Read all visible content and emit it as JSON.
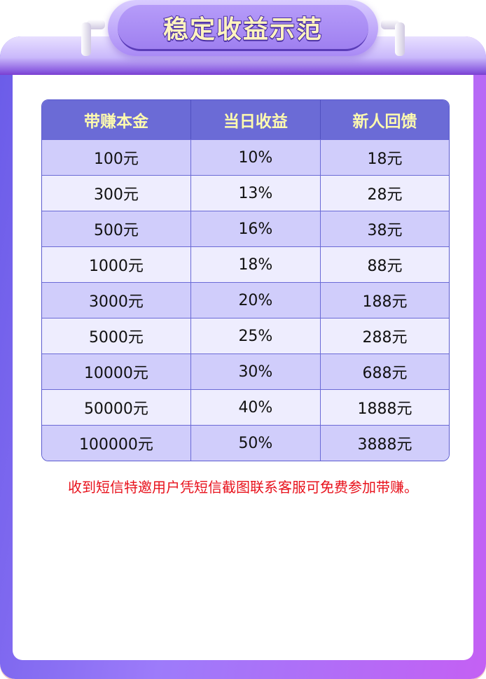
{
  "title": "稳定收益示范",
  "table": {
    "headers": [
      "带赚本金",
      "当日收益",
      "新人回馈"
    ],
    "rows": [
      [
        "100元",
        "10%",
        "18元"
      ],
      [
        "300元",
        "13%",
        "28元"
      ],
      [
        "500元",
        "16%",
        "38元"
      ],
      [
        "1000元",
        "18%",
        "88元"
      ],
      [
        "3000元",
        "20%",
        "188元"
      ],
      [
        "5000元",
        "25%",
        "288元"
      ],
      [
        "10000元",
        "30%",
        "688元"
      ],
      [
        "50000元",
        "40%",
        "1888元"
      ],
      [
        "100000元",
        "50%",
        "3888元"
      ]
    ]
  },
  "note": "收到短信特邀用户凭短信截图联系客服可免费参加带赚。",
  "colors": {
    "header_bg": "#6b6bd6",
    "header_text": "#fffbae",
    "row_odd": "#d0cdfb",
    "row_even": "#eeedfe",
    "note": "#e8121c"
  }
}
